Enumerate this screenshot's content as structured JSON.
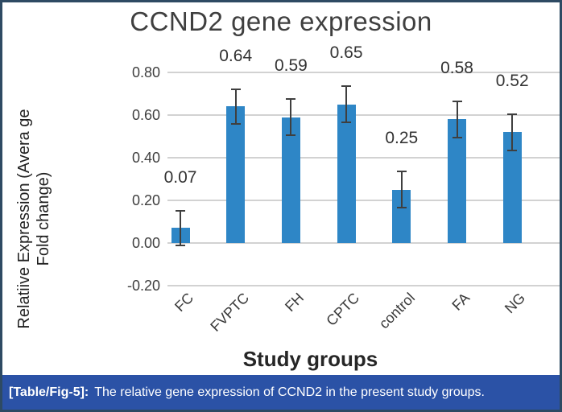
{
  "figure": {
    "caption_prefix": "[Table/Fig-5]:",
    "caption_text": "The relative gene expression of CCND2 in the present study groups."
  },
  "chart_data": {
    "type": "bar",
    "title": "CCND2 gene expression",
    "xlabel": "Study groups",
    "ylabel": "Relatiive Expression (Avera ge Fold change)",
    "ylabel_line1": "Relatiive Expression (Avera ge",
    "ylabel_line2": "Fold change)",
    "categories": [
      "FC",
      "FVPTC",
      "FH",
      "CPTC",
      "control",
      "FA",
      "NG"
    ],
    "values": [
      0.07,
      0.64,
      0.59,
      0.65,
      0.25,
      0.58,
      0.52
    ],
    "errors": [
      0.08,
      0.08,
      0.085,
      0.085,
      0.085,
      0.085,
      0.085
    ],
    "data_labels": [
      "0.07",
      "0.64",
      "0.59",
      "0.65",
      "0.25",
      "0.58",
      "0.52"
    ],
    "yticks": [
      {
        "value": 0.8,
        "label": "0.80"
      },
      {
        "value": 0.6,
        "label": "0.60"
      },
      {
        "value": 0.4,
        "label": "0.40"
      },
      {
        "value": 0.2,
        "label": "0.20"
      },
      {
        "value": 0.0,
        "label": "0.00"
      },
      {
        "value": -0.2,
        "label": "-0.20"
      }
    ],
    "ylim": [
      -0.2,
      0.8
    ],
    "grid": true,
    "legend": "none",
    "colors": {
      "bar": "#2e86c6",
      "error_bar": "#3f3f3f",
      "gridline": "#d2d2d2",
      "title_text": "#3f3f3f",
      "caption_bg": "#2b52a6",
      "caption_text": "#ffffff",
      "frame_border": "#2e4a63"
    }
  }
}
